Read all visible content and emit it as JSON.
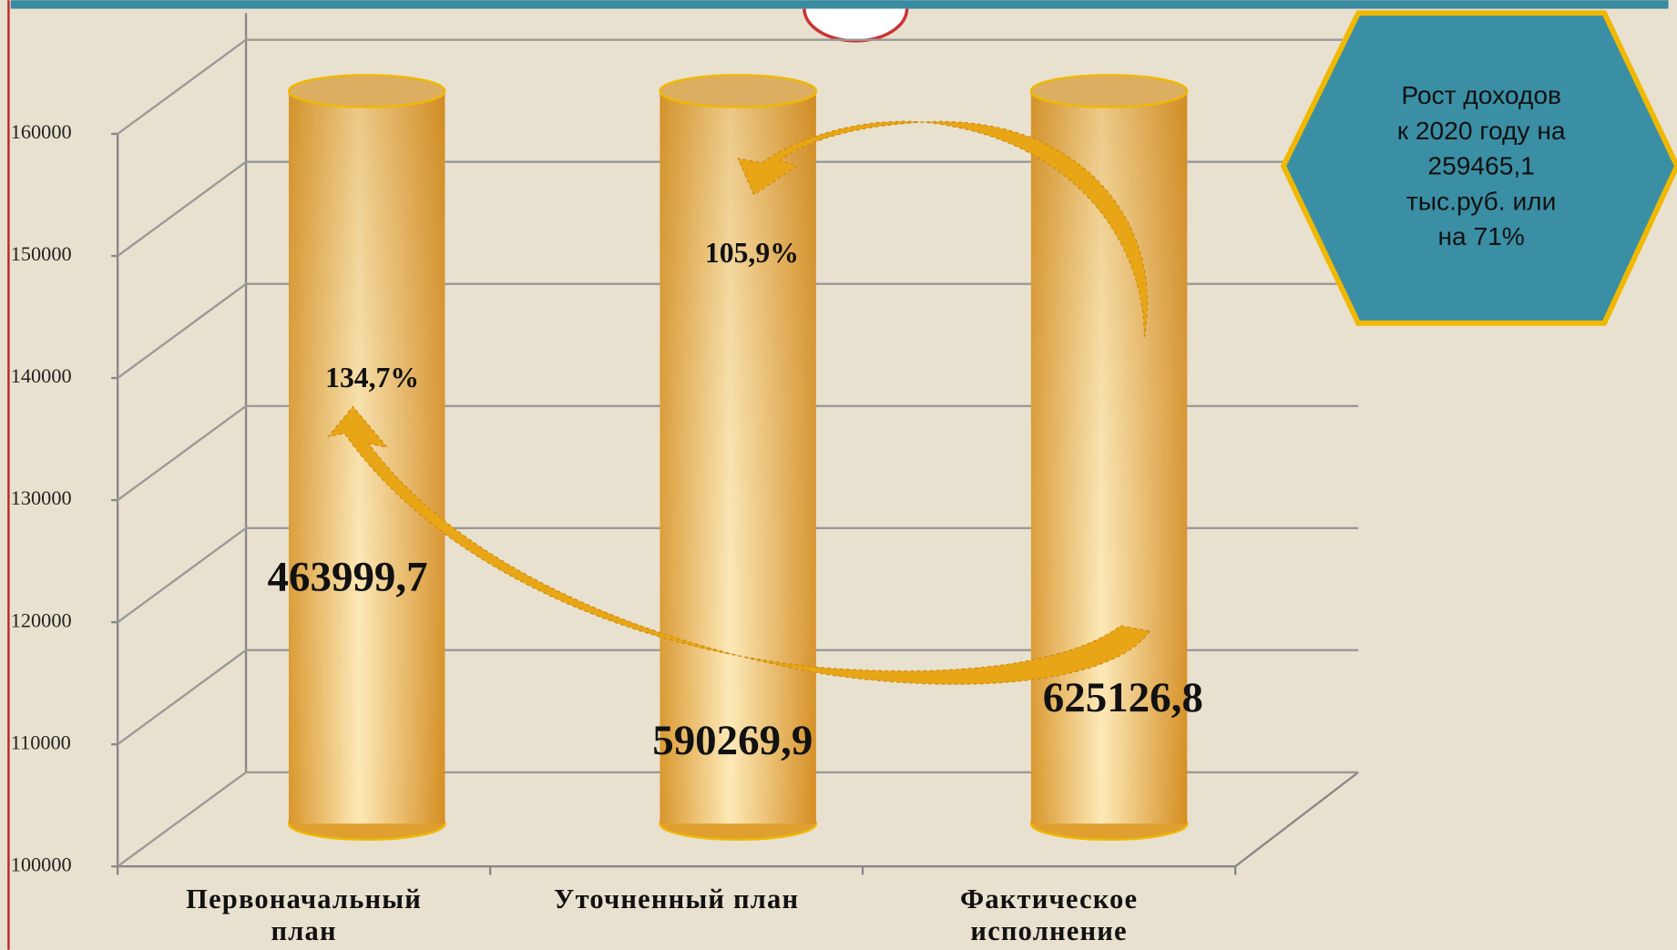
{
  "chart_data": {
    "type": "bar",
    "categories": [
      "Первоначальный план",
      "Уточненный план",
      "Фактическое исполнение"
    ],
    "values": [
      463999.7,
      590269.9,
      625126.8
    ],
    "value_labels": [
      "463999,7",
      "590269,9",
      "625126,8"
    ],
    "color": "#f2b640",
    "ylim": [
      100000,
      160000
    ],
    "yticks": [
      100000,
      110000,
      120000,
      130000,
      140000,
      150000,
      160000
    ],
    "grid": true,
    "annotations": [
      "134,7%",
      "105,9%"
    ],
    "callout": [
      "Рост доходов",
      "к 2020  году на",
      "259465,1",
      "тыс.руб. или",
      "на 71%"
    ]
  }
}
